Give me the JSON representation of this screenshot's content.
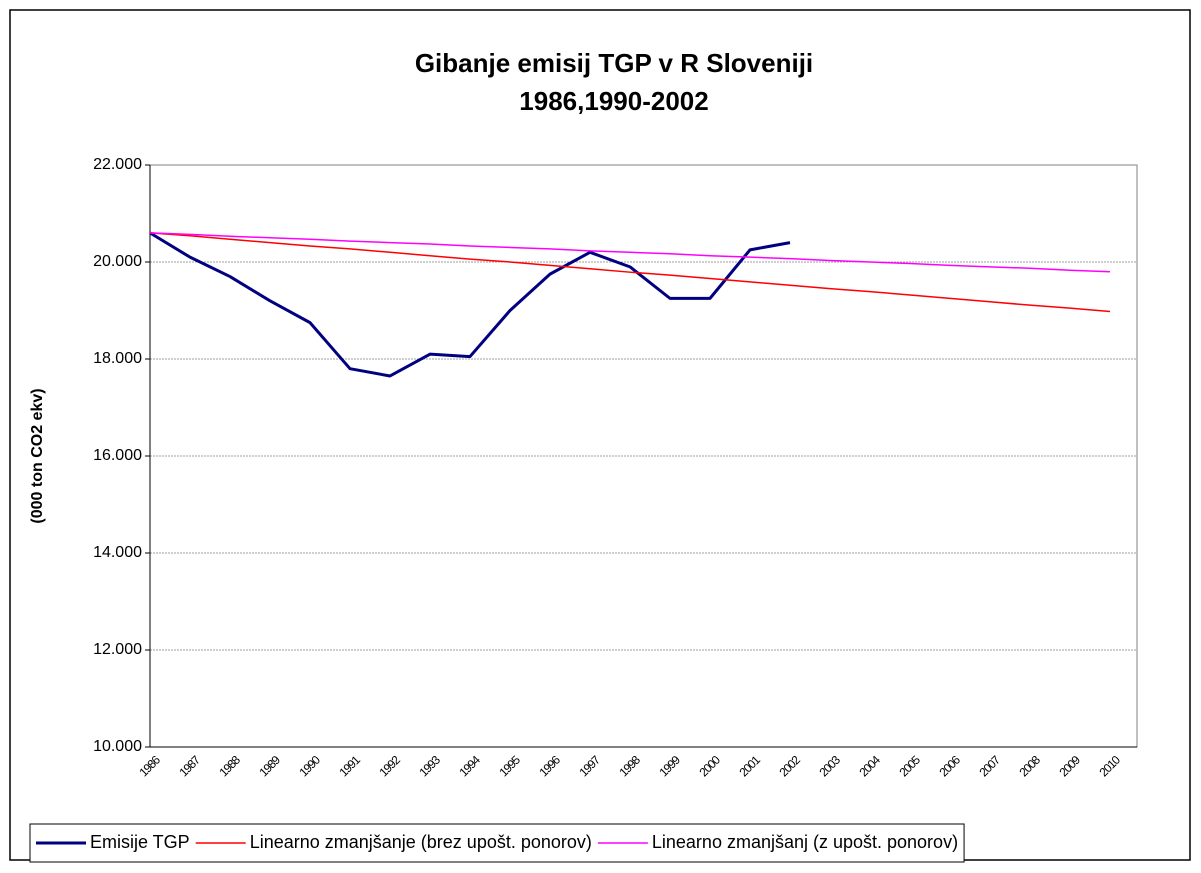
{
  "chart_data": {
    "type": "line",
    "title": "Gibanje emisij TGP v R Sloveniji",
    "subtitle": "1986,1990-2002",
    "y_label": "(000 ton CO2 ekv)",
    "categories": [
      "1986",
      "1987",
      "1988",
      "1989",
      "1990",
      "1991",
      "1992",
      "1993",
      "1994",
      "1995",
      "1996",
      "1997",
      "1998",
      "1999",
      "2000",
      "2001",
      "2002",
      "2003",
      "2004",
      "2005",
      "2006",
      "2007",
      "2008",
      "2009",
      "2010"
    ],
    "series": [
      {
        "name": "Emisije TGP",
        "color": "#000080",
        "values": [
          20600,
          20100,
          19700,
          19200,
          18750,
          17800,
          17650,
          18100,
          18050,
          19000,
          19750,
          20200,
          19900,
          19250,
          19250,
          20250,
          20400,
          null,
          null,
          null,
          null,
          null,
          null,
          null,
          null
        ]
      },
      {
        "name": "Linearno zmanjšanje (brez upošt. ponorov)",
        "color": "#ff0000",
        "values": [
          20600,
          20540,
          20470,
          20400,
          20330,
          20270,
          20200,
          20130,
          20060,
          20000,
          19930,
          19860,
          19790,
          19730,
          19660,
          19590,
          19520,
          19450,
          19390,
          19320,
          19250,
          19180,
          19110,
          19050,
          18980
        ]
      },
      {
        "name": "Linearno zmanjšanj (z upošt.  ponorov)",
        "color": "#ff00ff",
        "values": [
          20600,
          20570,
          20530,
          20500,
          20470,
          20430,
          20400,
          20370,
          20330,
          20300,
          20270,
          20230,
          20200,
          20170,
          20130,
          20100,
          20070,
          20030,
          20000,
          19970,
          19930,
          19900,
          19870,
          19830,
          19800
        ]
      }
    ],
    "ylim": [
      10000,
      22000
    ],
    "yticks": [
      {
        "value": 10000,
        "label": "10.000"
      },
      {
        "value": 12000,
        "label": "12.000"
      },
      {
        "value": 14000,
        "label": "14.000"
      },
      {
        "value": 16000,
        "label": "16.000"
      },
      {
        "value": 18000,
        "label": "18.000"
      },
      {
        "value": 20000,
        "label": "20.000"
      },
      {
        "value": 22000,
        "label": "22.000"
      }
    ],
    "grid": true,
    "legend": "bottom"
  }
}
